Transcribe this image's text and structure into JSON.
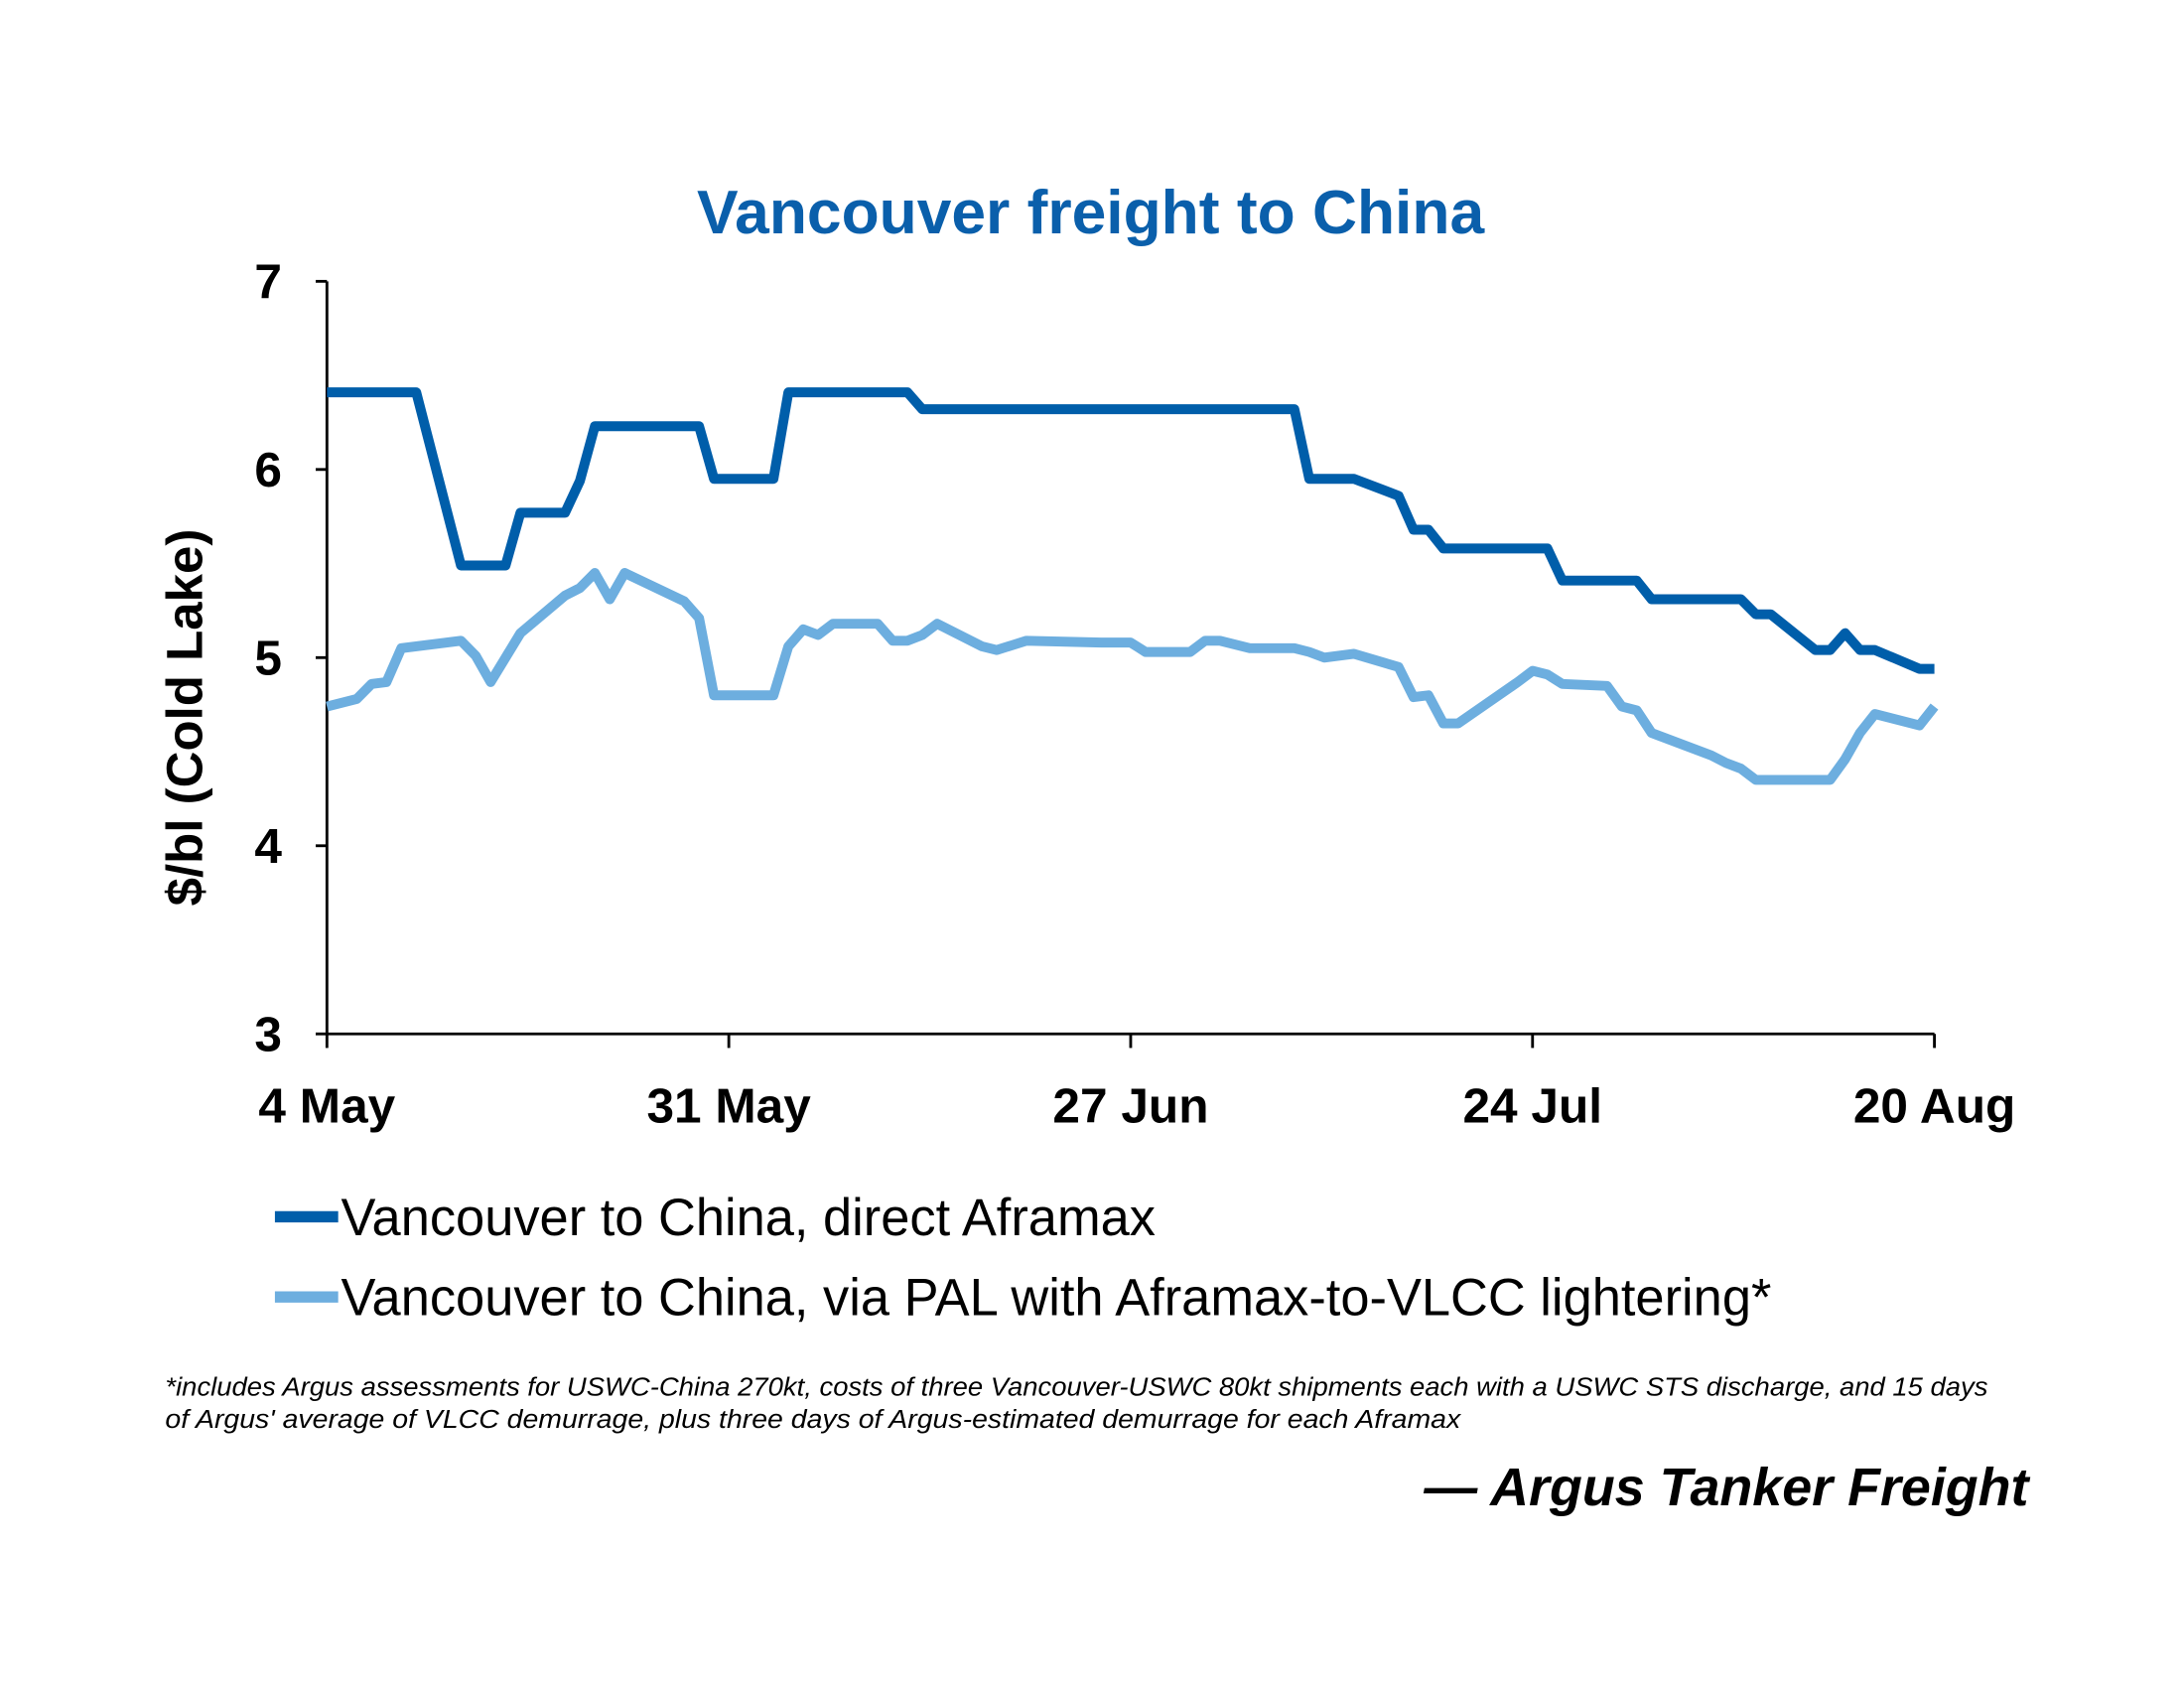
{
  "chart_data": {
    "type": "line",
    "title": "Vancouver freight to China",
    "ylabel": "$/bl (Cold Lake)",
    "xlabel": "",
    "ylim": [
      3,
      7
    ],
    "yticks": [
      "3",
      "4",
      "5",
      "6",
      "7"
    ],
    "xlim": [
      "4 May",
      "20 Aug"
    ],
    "xticks": [
      "4 May",
      "31 May",
      "27 Jun",
      "24 Jul",
      "20 Aug"
    ],
    "grid": false,
    "legend_position": "bottom",
    "series": [
      {
        "name": "Vancouver to China, direct Aframax",
        "color": "#005EAA",
        "points": [
          [
            "4 May",
            6.41
          ],
          [
            "10 May",
            6.41
          ],
          [
            "13 May",
            5.49
          ],
          [
            "16 May",
            5.49
          ],
          [
            "17 May",
            5.77
          ],
          [
            "20 May",
            5.77
          ],
          [
            "21 May",
            5.94
          ],
          [
            "22 May",
            6.23
          ],
          [
            "29 May",
            6.23
          ],
          [
            "30 May",
            5.95
          ],
          [
            "3 Jun",
            5.95
          ],
          [
            "4 Jun",
            6.41
          ],
          [
            "12 Jun",
            6.41
          ],
          [
            "13 Jun",
            6.32
          ],
          [
            "8 Jul",
            6.32
          ],
          [
            "9 Jul",
            5.95
          ],
          [
            "12 Jul",
            5.95
          ],
          [
            "15 Jul",
            5.86
          ],
          [
            "16 Jul",
            5.68
          ],
          [
            "17 Jul",
            5.68
          ],
          [
            "18 Jul",
            5.58
          ],
          [
            "25 Jul",
            5.58
          ],
          [
            "26 Jul",
            5.41
          ],
          [
            "31 Jul",
            5.41
          ],
          [
            "1 Aug",
            5.31
          ],
          [
            "7 Aug",
            5.31
          ],
          [
            "8 Aug",
            5.23
          ],
          [
            "9 Aug",
            5.23
          ],
          [
            "12 Aug",
            5.04
          ],
          [
            "13 Aug",
            5.04
          ],
          [
            "14 Aug",
            5.13
          ],
          [
            "15 Aug",
            5.04
          ],
          [
            "16 Aug",
            5.04
          ],
          [
            "19 Aug",
            4.94
          ],
          [
            "20 Aug",
            4.94
          ]
        ]
      },
      {
        "name": "Vancouver to China, via PAL with Aframax-to-VLCC lightering*",
        "color": "#6DAEDF",
        "points": [
          [
            "4 May",
            4.74
          ],
          [
            "6 May",
            4.78
          ],
          [
            "7 May",
            4.86
          ],
          [
            "8 May",
            4.87
          ],
          [
            "9 May",
            5.05
          ],
          [
            "10 May",
            5.06
          ],
          [
            "13 May",
            5.09
          ],
          [
            "14 May",
            5.01
          ],
          [
            "15 May",
            4.87
          ],
          [
            "16 May",
            5.0
          ],
          [
            "17 May",
            5.13
          ],
          [
            "20 May",
            5.33
          ],
          [
            "21 May",
            5.37
          ],
          [
            "22 May",
            5.45
          ],
          [
            "23 May",
            5.31
          ],
          [
            "24 May",
            5.45
          ],
          [
            "28 May",
            5.3
          ],
          [
            "29 May",
            5.21
          ],
          [
            "30 May",
            4.8
          ],
          [
            "3 Jun",
            4.8
          ],
          [
            "4 Jun",
            5.06
          ],
          [
            "5 Jun",
            5.15
          ],
          [
            "6 Jun",
            5.12
          ],
          [
            "7 Jun",
            5.18
          ],
          [
            "10 Jun",
            5.18
          ],
          [
            "11 Jun",
            5.09
          ],
          [
            "12 Jun",
            5.09
          ],
          [
            "13 Jun",
            5.12
          ],
          [
            "14 Jun",
            5.18
          ],
          [
            "17 Jun",
            5.06
          ],
          [
            "18 Jun",
            5.04
          ],
          [
            "20 Jun",
            5.09
          ],
          [
            "25 Jun",
            5.08
          ],
          [
            "27 Jun",
            5.08
          ],
          [
            "28 Jun",
            5.03
          ],
          [
            "1 Jul",
            5.03
          ],
          [
            "2 Jul",
            5.09
          ],
          [
            "3 Jul",
            5.09
          ],
          [
            "5 Jul",
            5.05
          ],
          [
            "8 Jul",
            5.05
          ],
          [
            "9 Jul",
            5.03
          ],
          [
            "10 Jul",
            5.0
          ],
          [
            "12 Jul",
            5.02
          ],
          [
            "15 Jul",
            4.95
          ],
          [
            "16 Jul",
            4.79
          ],
          [
            "17 Jul",
            4.8
          ],
          [
            "18 Jul",
            4.65
          ],
          [
            "19 Jul",
            4.65
          ],
          [
            "23 Jul",
            4.87
          ],
          [
            "24 Jul",
            4.93
          ],
          [
            "25 Jul",
            4.91
          ],
          [
            "26 Jul",
            4.86
          ],
          [
            "29 Jul",
            4.85
          ],
          [
            "30 Jul",
            4.74
          ],
          [
            "31 Jul",
            4.72
          ],
          [
            "1 Aug",
            4.6
          ],
          [
            "5 Aug",
            4.48
          ],
          [
            "6 Aug",
            4.44
          ],
          [
            "7 Aug",
            4.41
          ],
          [
            "8 Aug",
            4.35
          ],
          [
            "13 Aug",
            4.35
          ],
          [
            "14 Aug",
            4.46
          ],
          [
            "15 Aug",
            4.6
          ],
          [
            "16 Aug",
            4.7
          ],
          [
            "19 Aug",
            4.64
          ],
          [
            "20 Aug",
            4.74
          ]
        ]
      }
    ],
    "title_color": "#0A5FAB",
    "footnote": [
      "*includes Argus assessments for USWC-China 270kt, costs of three Vancouver-USWC 80kt shipments each with a USWC STS discharge, and 15 days",
      "of Argus' average of VLCC demurrage, plus three days of Argus-estimated demurrage for each Aframax"
    ],
    "source": "— Argus Tanker Freight"
  }
}
